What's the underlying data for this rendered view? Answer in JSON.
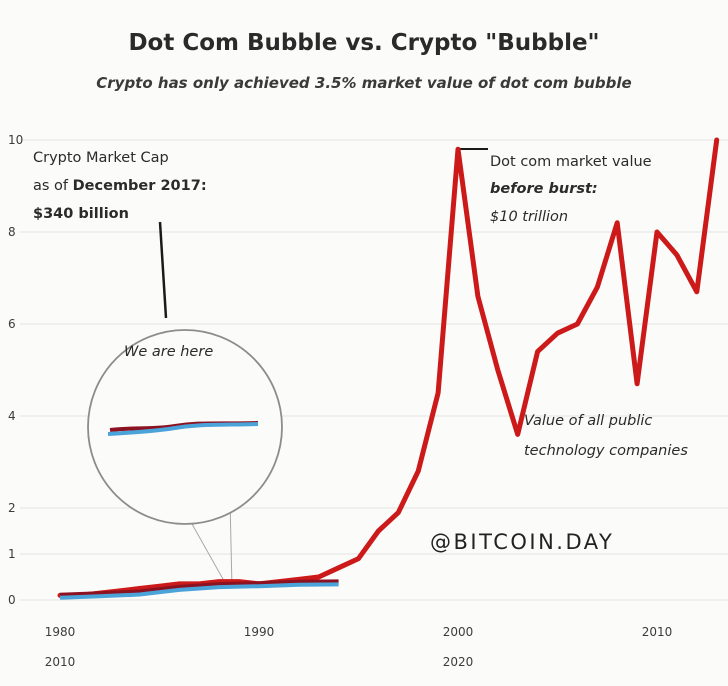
{
  "chart_data": {
    "type": "line",
    "title": "Dot Com Bubble vs. Crypto \"Bubble\"",
    "subtitle": "Crypto has only achieved 3.5% market value of dot com bubble",
    "ylim": [
      0,
      10
    ],
    "y_ticks": [
      "0",
      "1",
      "2",
      "4",
      "6",
      "8",
      "10"
    ],
    "x_axes": [
      {
        "ticks": [
          "1980",
          "1990",
          "2000",
          "2010"
        ],
        "series": "Value of all public technology companies"
      },
      {
        "ticks": [
          "2010",
          "2020"
        ],
        "series": "Crypto Market Cap"
      }
    ],
    "grid": true,
    "colors": {
      "tech": "#cc1a1a",
      "crypto_dark": "#8c1222",
      "crypto_light": "#4aa3d9"
    },
    "series": [
      {
        "name": "Value of all public technology companies",
        "x_axis": "1980-2010",
        "x": [
          1980,
          1981,
          1982,
          1983,
          1984,
          1985,
          1986,
          1987,
          1988,
          1989,
          1990,
          1991,
          1992,
          1993,
          1994,
          1995,
          1996,
          1997,
          1998,
          1999,
          2000,
          2001,
          2002,
          2003,
          2004,
          2005,
          2006,
          2007,
          2008,
          2009,
          2010,
          2011,
          2012,
          2013
        ],
        "values": [
          0.1,
          0.1,
          0.15,
          0.2,
          0.25,
          0.3,
          0.35,
          0.35,
          0.4,
          0.4,
          0.35,
          0.4,
          0.45,
          0.5,
          0.7,
          0.9,
          1.5,
          1.9,
          2.8,
          4.5,
          9.8,
          6.6,
          5.0,
          3.6,
          5.4,
          5.8,
          6.0,
          6.8,
          8.2,
          4.7,
          8.0,
          7.5,
          6.7,
          10.0
        ]
      },
      {
        "name": "Crypto Market Cap",
        "x_axis": "2010-2020",
        "x": [
          2010,
          2011,
          2012,
          2013,
          2014,
          2015,
          2016,
          2017
        ],
        "values": [
          0.05,
          0.08,
          0.12,
          0.22,
          0.28,
          0.3,
          0.33,
          0.34
        ]
      }
    ],
    "annotations": {
      "crypto_label": [
        "Crypto Market Cap",
        "as of "
      ],
      "crypto_label_bold": [
        "December 2017:",
        "$340 billion"
      ],
      "zoom_label": "We are here",
      "peak_label": [
        "Dot com market value",
        "before burst:",
        "$10 trillion"
      ],
      "tech_label": [
        "Value of all public",
        "technology companies"
      ]
    },
    "watermark": "@BITCOIN.DAY"
  }
}
